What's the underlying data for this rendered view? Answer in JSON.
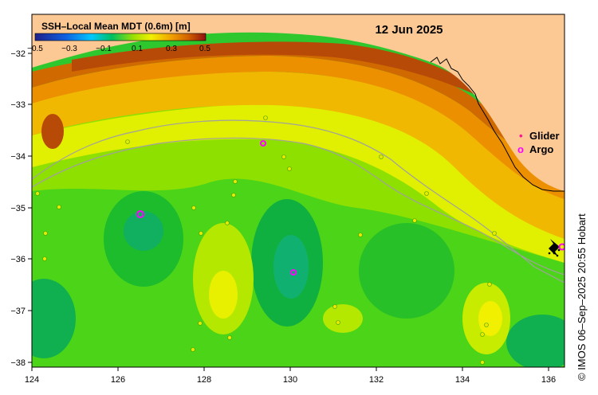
{
  "colorbar": {
    "title": "SSH–Local Mean MDT (0.6m) [m]",
    "ticks": [
      "−0.5",
      "−0.3",
      "−0.1",
      "0.1",
      "0.3",
      "0.5"
    ]
  },
  "date_label": "12 Jun 2025",
  "legend": {
    "glider_symbol": "•",
    "glider_label": "Glider",
    "argo_symbol": "o",
    "argo_label": "Argo",
    "glider_color": "#ff1493",
    "argo_color": "#ff00ff"
  },
  "axes": {
    "x_ticks": [
      "124",
      "126",
      "128",
      "130",
      "132",
      "134",
      "136"
    ],
    "y_ticks": [
      "−32",
      "−33",
      "−34",
      "−35",
      "−36",
      "−37",
      "−38"
    ]
  },
  "credit": "© IMOS 06–Sep–2025 20:55 Hobart",
  "colors": {
    "land": "#fcc894",
    "low_anomaly": "#00b050",
    "mid_anomaly": "#8ee000",
    "high_anomaly": "#f0f000",
    "very_high": "#b84a08"
  }
}
